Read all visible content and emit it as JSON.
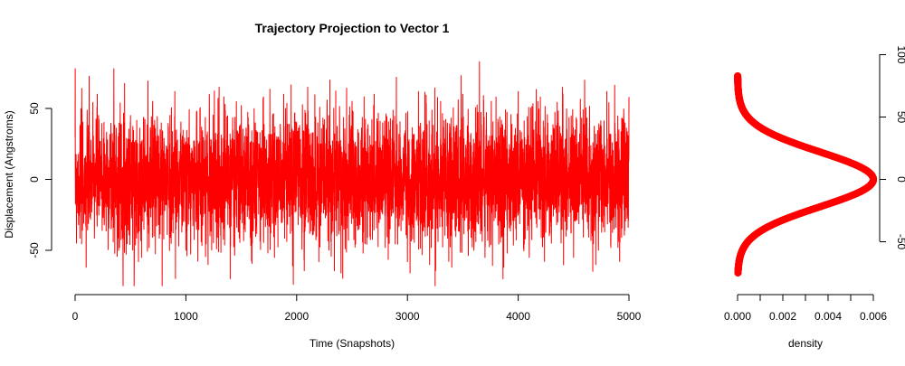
{
  "chart_data": [
    {
      "type": "line",
      "title": "Trajectory Projection to Vector 1",
      "xlabel": "Time (Snapshots)",
      "ylabel": "Displacement (Angstroms)",
      "xlim": [
        0,
        5000
      ],
      "ylim": [
        -80,
        85
      ],
      "xticks": [
        "0",
        "1000",
        "2000",
        "3000",
        "4000",
        "5000"
      ],
      "yticks": [
        "-50",
        "0",
        "50"
      ],
      "grid": false,
      "series": [
        {
          "color": "#ff0000",
          "sample_count": 5000,
          "distribution": "approximately normal",
          "mean": 0,
          "std_dev": 22,
          "observed_min": -75,
          "observed_max": 83,
          "x": [
            0,
            100,
            200,
            300,
            350,
            400,
            500,
            600,
            700,
            800,
            900,
            1000,
            1100,
            1200,
            1300,
            1400,
            1500,
            1600,
            1700,
            1800,
            1900,
            1970,
            2000,
            2100,
            2200,
            2300,
            2400,
            2500,
            2600,
            2700,
            2800,
            2900,
            3000,
            3100,
            3200,
            3250,
            3300,
            3400,
            3500,
            3600,
            3650,
            3700,
            3800,
            3900,
            4000,
            4100,
            4200,
            4300,
            4400,
            4500,
            4600,
            4700,
            4800,
            4900,
            5000
          ],
          "y": [
            30,
            -62,
            60,
            -35,
            78,
            -48,
            45,
            -55,
            55,
            -42,
            62,
            -50,
            48,
            -60,
            65,
            -70,
            52,
            -45,
            58,
            -55,
            50,
            -74,
            40,
            65,
            -58,
            70,
            -66,
            55,
            -52,
            60,
            -48,
            72,
            -58,
            62,
            -60,
            -75,
            55,
            -62,
            60,
            -50,
            83,
            -55,
            58,
            -52,
            62,
            -55,
            58,
            -45,
            65,
            -55,
            70,
            -60,
            62,
            -48,
            58
          ]
        }
      ]
    },
    {
      "type": "scatter",
      "title": "",
      "xlabel": "density",
      "ylabel": "",
      "xlim": [
        0,
        0.006
      ],
      "ylim": [
        -80,
        100
      ],
      "xticks": [
        "0.000",
        "0.002",
        "0.004",
        "0.006"
      ],
      "yticks": [
        "-50",
        "0",
        "50",
        "100"
      ],
      "y_axis_side": "right",
      "grid": false,
      "series": [
        {
          "color": "#ff0000",
          "shape": "Gaussian density curve",
          "mean": 0,
          "std_dev": 22,
          "peak_density": 0.006,
          "peak_at": 0,
          "y_range": [
            -75,
            83
          ]
        }
      ]
    }
  ]
}
